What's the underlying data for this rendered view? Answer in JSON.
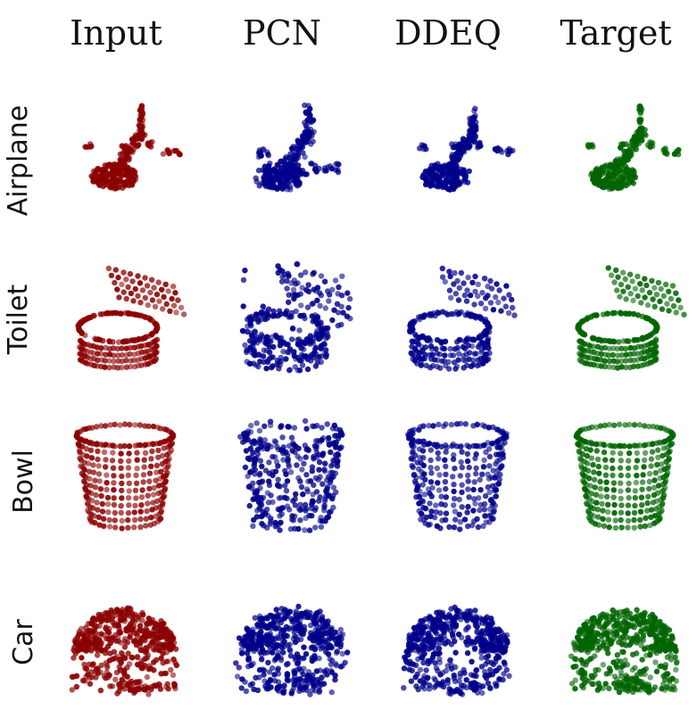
{
  "columns": [
    {
      "label": "Input",
      "color": "#8b0000"
    },
    {
      "label": "PCN",
      "color": "#00008b"
    },
    {
      "label": "DDEQ",
      "color": "#00008b"
    },
    {
      "label": "Target",
      "color": "#006400"
    }
  ],
  "rows": [
    {
      "label": "Airplane",
      "shape": "airplane"
    },
    {
      "label": "Toilet",
      "shape": "toilet"
    },
    {
      "label": "Bowl",
      "shape": "bowl"
    },
    {
      "label": "Car",
      "shape": "car"
    }
  ]
}
